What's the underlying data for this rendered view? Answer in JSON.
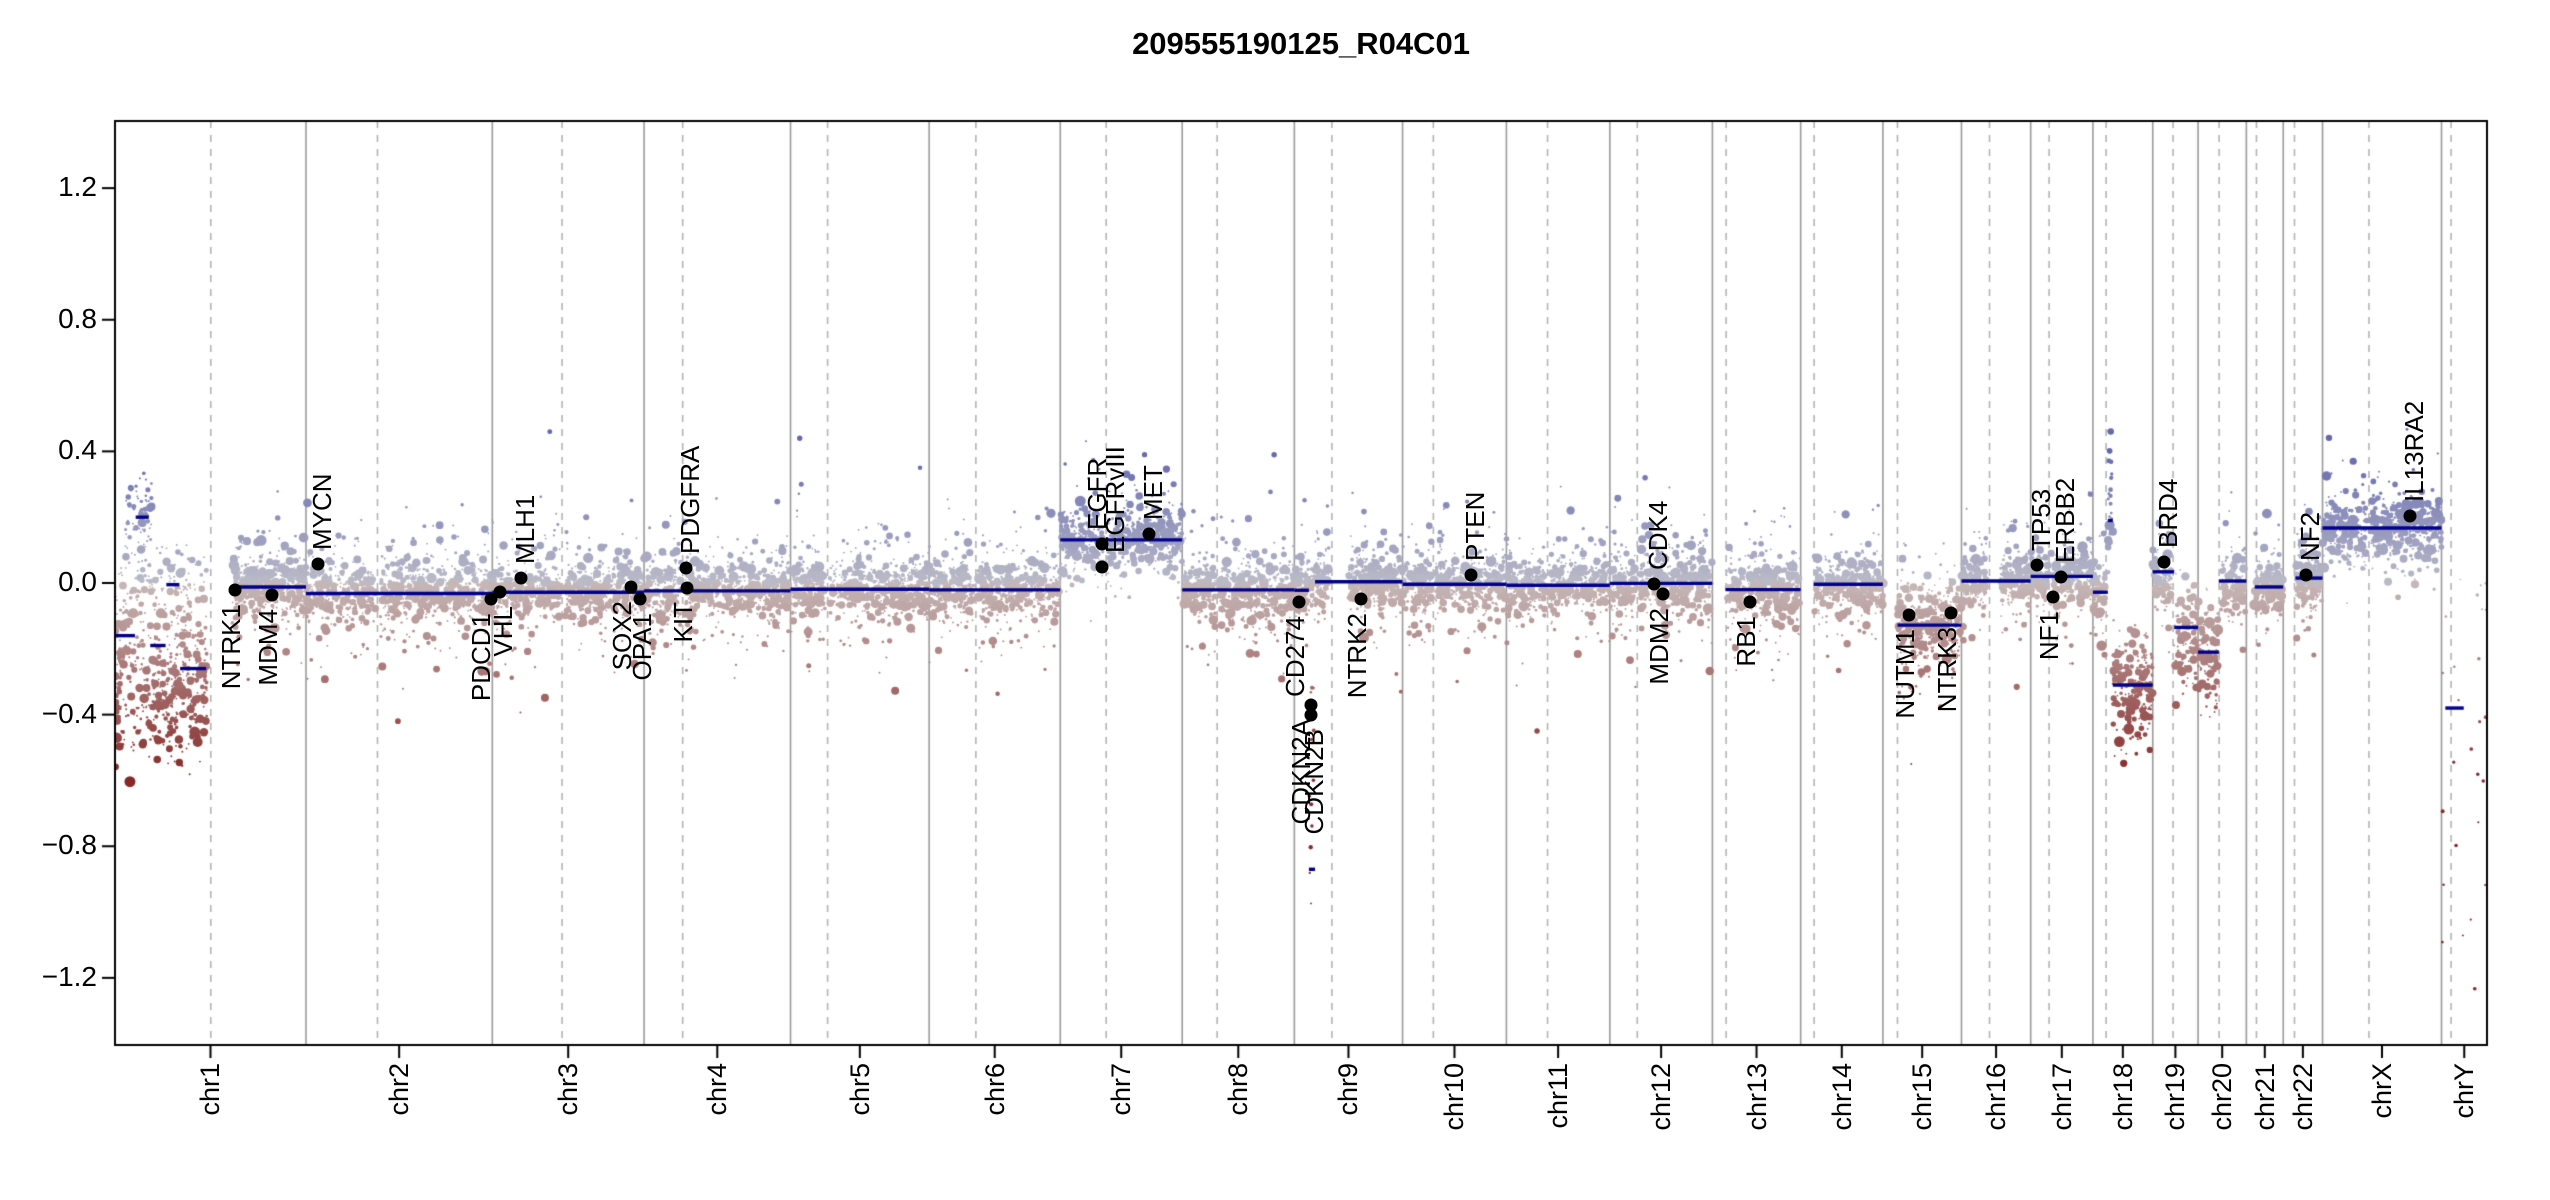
{
  "title": "209555190125_R04C01",
  "colors": {
    "background": "#ffffff",
    "segment_line": "#00008B",
    "gene_dot": "#000000",
    "boundary_line": "#9b9b9b",
    "centromere_line": "#b4b4b4",
    "axis": "#000000",
    "point_pos_low": "#bbbbc7",
    "point_pos_high": "#6368b0",
    "point_neg_low": "#c6b8b8",
    "point_neg_high": "#862a28"
  },
  "chart_data": {
    "type": "scatter",
    "title": "209555190125_R04C01",
    "xlabel": "",
    "ylabel": "",
    "ylim": [
      -1.404,
      1.404
    ],
    "grid": "chromosome boundaries solid, centromeres dashed",
    "y_ticks": [
      1.2,
      0.8,
      0.4,
      0.0,
      -0.4,
      -0.8,
      -1.2
    ],
    "chromosomes": [
      {
        "name": "chr1",
        "length_mb": 249.25,
        "centromere_mb": 125.0,
        "gaps": [
          [
            120,
            153
          ]
        ]
      },
      {
        "name": "chr2",
        "length_mb": 243.2,
        "centromere_mb": 93.3,
        "gaps": [
          [
            91,
            96
          ]
        ]
      },
      {
        "name": "chr3",
        "length_mb": 198.02,
        "centromere_mb": 91.0,
        "gaps": [
          [
            88,
            94
          ]
        ]
      },
      {
        "name": "chr4",
        "length_mb": 191.15,
        "centromere_mb": 50.4,
        "gaps": [
          [
            48,
            53
          ]
        ]
      },
      {
        "name": "chr5",
        "length_mb": 180.92,
        "centromere_mb": 48.4,
        "gaps": [
          [
            45,
            51
          ]
        ]
      },
      {
        "name": "chr6",
        "length_mb": 171.12,
        "centromere_mb": 61.0,
        "gaps": [
          [
            58,
            64
          ]
        ]
      },
      {
        "name": "chr7",
        "length_mb": 159.14,
        "centromere_mb": 59.9,
        "gaps": [
          [
            57,
            62
          ]
        ]
      },
      {
        "name": "chr8",
        "length_mb": 146.36,
        "centromere_mb": 45.6,
        "gaps": [
          [
            43,
            48
          ]
        ]
      },
      {
        "name": "chr9",
        "length_mb": 141.21,
        "centromere_mb": 49.0,
        "gaps": [
          [
            45,
            70
          ]
        ]
      },
      {
        "name": "chr10",
        "length_mb": 135.53,
        "centromere_mb": 40.2,
        "gaps": [
          [
            38,
            43
          ]
        ]
      },
      {
        "name": "chr11",
        "length_mb": 135.01,
        "centromere_mb": 53.7,
        "gaps": [
          [
            51,
            56
          ]
        ]
      },
      {
        "name": "chr12",
        "length_mb": 133.85,
        "centromere_mb": 35.8,
        "gaps": [
          [
            34,
            39
          ]
        ]
      },
      {
        "name": "chr13",
        "length_mb": 115.17,
        "centromere_mb": 17.9,
        "gaps": [
          [
            0,
            18
          ]
        ]
      },
      {
        "name": "chr14",
        "length_mb": 107.35,
        "centromere_mb": 17.6,
        "gaps": [
          [
            0,
            18
          ]
        ]
      },
      {
        "name": "chr15",
        "length_mb": 102.53,
        "centromere_mb": 19.0,
        "gaps": [
          [
            0,
            19.5
          ]
        ]
      },
      {
        "name": "chr16",
        "length_mb": 90.35,
        "centromere_mb": 36.6,
        "gaps": [
          [
            33,
            51
          ]
        ]
      },
      {
        "name": "chr17",
        "length_mb": 81.2,
        "centromere_mb": 24.0,
        "gaps": [
          [
            23,
            26
          ]
        ]
      },
      {
        "name": "chr18",
        "length_mb": 78.08,
        "centromere_mb": 17.2,
        "gaps": [
          [
            16.5,
            19
          ]
        ]
      },
      {
        "name": "chr19",
        "length_mb": 59.13,
        "centromere_mb": 26.5,
        "gaps": [
          [
            24.5,
            28
          ]
        ]
      },
      {
        "name": "chr20",
        "length_mb": 63.03,
        "centromere_mb": 27.5,
        "gaps": [
          [
            26,
            30
          ]
        ]
      },
      {
        "name": "chr21",
        "length_mb": 48.13,
        "centromere_mb": 13.2,
        "gaps": [
          [
            0,
            11
          ]
        ]
      },
      {
        "name": "chr22",
        "length_mb": 51.3,
        "centromere_mb": 14.7,
        "gaps": [
          [
            0,
            16
          ]
        ]
      },
      {
        "name": "chrX",
        "length_mb": 155.27,
        "centromere_mb": 60.6,
        "gaps": [
          [
            58,
            63
          ]
        ]
      },
      {
        "name": "chrY",
        "length_mb": 59.37,
        "centromere_mb": 12.5,
        "gaps": [
          [
            8,
            14
          ],
          [
            30,
            38
          ]
        ]
      }
    ],
    "segments": [
      {
        "chr": "chr1",
        "start_mb": 0,
        "end_mb": 26,
        "value": -0.16
      },
      {
        "chr": "chr1",
        "start_mb": 27,
        "end_mb": 44,
        "value": 0.2
      },
      {
        "chr": "chr1",
        "start_mb": 46,
        "end_mb": 66,
        "value": -0.19
      },
      {
        "chr": "chr1",
        "start_mb": 67,
        "end_mb": 84,
        "value": -0.005
      },
      {
        "chr": "chr1",
        "start_mb": 85,
        "end_mb": 119,
        "value": -0.26
      },
      {
        "chr": "chr1",
        "start_mb": 153,
        "end_mb": 249.25,
        "value": -0.012
      },
      {
        "chr": "chr2",
        "start_mb": 0,
        "end_mb": 243.2,
        "value": -0.032
      },
      {
        "chr": "chr3",
        "start_mb": 0,
        "end_mb": 198.02,
        "value": -0.028
      },
      {
        "chr": "chr4",
        "start_mb": 0,
        "end_mb": 191.15,
        "value": -0.024
      },
      {
        "chr": "chr5",
        "start_mb": 0,
        "end_mb": 180.92,
        "value": -0.019
      },
      {
        "chr": "chr6",
        "start_mb": 0,
        "end_mb": 171.12,
        "value": -0.021
      },
      {
        "chr": "chr7",
        "start_mb": 0,
        "end_mb": 159.14,
        "value": 0.131
      },
      {
        "chr": "chr8",
        "start_mb": 0,
        "end_mb": 146.36,
        "value": -0.021
      },
      {
        "chr": "chr9",
        "start_mb": 0,
        "end_mb": 19,
        "value": -0.022
      },
      {
        "chr": "chr9",
        "start_mb": 19,
        "end_mb": 27,
        "value": -0.87
      },
      {
        "chr": "chr9",
        "start_mb": 27,
        "end_mb": 141.21,
        "value": 0.004
      },
      {
        "chr": "chr10",
        "start_mb": 0,
        "end_mb": 135.53,
        "value": -0.004
      },
      {
        "chr": "chr11",
        "start_mb": 0,
        "end_mb": 135.01,
        "value": -0.007
      },
      {
        "chr": "chr12",
        "start_mb": 0,
        "end_mb": 133.85,
        "value": -0.001
      },
      {
        "chr": "chr13",
        "start_mb": 17,
        "end_mb": 115.17,
        "value": -0.02
      },
      {
        "chr": "chr14",
        "start_mb": 17,
        "end_mb": 107.35,
        "value": -0.004
      },
      {
        "chr": "chr15",
        "start_mb": 19,
        "end_mb": 102.53,
        "value": -0.128
      },
      {
        "chr": "chr16",
        "start_mb": 0,
        "end_mb": 90.35,
        "value": 0.006
      },
      {
        "chr": "chr17",
        "start_mb": 0,
        "end_mb": 81.2,
        "value": 0.02
      },
      {
        "chr": "chr18",
        "start_mb": 0,
        "end_mb": 19.5,
        "value": -0.028
      },
      {
        "chr": "chr18",
        "start_mb": 19.5,
        "end_mb": 26,
        "value": 0.19
      },
      {
        "chr": "chr18",
        "start_mb": 26,
        "end_mb": 78.08,
        "value": -0.31
      },
      {
        "chr": "chr19",
        "start_mb": 0,
        "end_mb": 28,
        "value": 0.034
      },
      {
        "chr": "chr19",
        "start_mb": 28,
        "end_mb": 59.13,
        "value": -0.135
      },
      {
        "chr": "chr20",
        "start_mb": 0,
        "end_mb": 27,
        "value": -0.21
      },
      {
        "chr": "chr20",
        "start_mb": 27,
        "end_mb": 63.03,
        "value": 0.006
      },
      {
        "chr": "chr21",
        "start_mb": 11,
        "end_mb": 48.13,
        "value": -0.012
      },
      {
        "chr": "chr22",
        "start_mb": 16,
        "end_mb": 51.3,
        "value": 0.015
      },
      {
        "chr": "chrX",
        "start_mb": 0,
        "end_mb": 155.27,
        "value": 0.167
      },
      {
        "chr": "chrY",
        "start_mb": 5,
        "end_mb": 29,
        "value": -0.38
      }
    ],
    "genes": [
      {
        "label": "NTRK1",
        "chr": "chr1",
        "mb": 156.8,
        "value": -0.02,
        "side": "below",
        "ldx": 0
      },
      {
        "label": "MDM4",
        "chr": "chr1",
        "mb": 204.5,
        "value": -0.035,
        "side": "below",
        "ldx": 0
      },
      {
        "label": "MYCN",
        "chr": "chr2",
        "mb": 16.1,
        "value": 0.058,
        "side": "above",
        "ldx": 0
      },
      {
        "label": "PDCD1",
        "chr": "chr2",
        "mb": 242.0,
        "value": -0.05,
        "side": "below",
        "ldx": -6
      },
      {
        "label": "VHL",
        "chr": "chr3",
        "mb": 10.2,
        "value": -0.028,
        "side": "below",
        "ldx": 7
      },
      {
        "label": "MLH1",
        "chr": "chr3",
        "mb": 37.0,
        "value": 0.015,
        "side": "above",
        "ldx": 0
      },
      {
        "label": "SOX2",
        "chr": "chr3",
        "mb": 181.4,
        "value": -0.012,
        "side": "below",
        "ldx": -5
      },
      {
        "label": "OPA1",
        "chr": "chr3",
        "mb": 193.3,
        "value": -0.048,
        "side": "below",
        "ldx": 6
      },
      {
        "label": "PDGFRA",
        "chr": "chr4",
        "mb": 55.1,
        "value": 0.045,
        "side": "above",
        "ldx": 0
      },
      {
        "label": "KIT",
        "chr": "chr4",
        "mb": 55.6,
        "value": -0.015,
        "side": "below",
        "ldx": 0
      },
      {
        "label": "EGFR",
        "chr": "chr7",
        "mb": 55.1,
        "value": 0.12,
        "side": "above",
        "ldx": -9
      },
      {
        "label": "EGFRvIII",
        "chr": "chr7",
        "mb": 55.1,
        "value": 0.05,
        "side": "above",
        "ldx": 9
      },
      {
        "label": "MET",
        "chr": "chr7",
        "mb": 116.3,
        "value": 0.15,
        "side": "above",
        "ldx": 0
      },
      {
        "label": "CD274",
        "chr": "chr9",
        "mb": 5.5,
        "value": -0.058,
        "side": "below",
        "ldx": 0
      },
      {
        "label": "CDKN2A",
        "chr": "chr9",
        "mb": 21.97,
        "value": -0.37,
        "side": "below",
        "ldx": -6
      },
      {
        "label": "CDKN2B",
        "chr": "chr9",
        "mb": 22.0,
        "value": -0.4,
        "side": "below",
        "ldx": 7
      },
      {
        "label": "NTRK2",
        "chr": "chr9",
        "mb": 87.3,
        "value": -0.05,
        "side": "below",
        "ldx": 0
      },
      {
        "label": "PTEN",
        "chr": "chr10",
        "mb": 89.7,
        "value": 0.025,
        "side": "above",
        "ldx": 0
      },
      {
        "label": "CDK4",
        "chr": "chr12",
        "mb": 58.1,
        "value": -0.002,
        "side": "above",
        "ldx": 0
      },
      {
        "label": "MDM2",
        "chr": "chr12",
        "mb": 69.2,
        "value": -0.033,
        "side": "below",
        "ldx": 0
      },
      {
        "label": "RB1",
        "chr": "chr13",
        "mb": 48.9,
        "value": -0.057,
        "side": "below",
        "ldx": 0
      },
      {
        "label": "NUTM1",
        "chr": "chr15",
        "mb": 34.6,
        "value": -0.097,
        "side": "below",
        "ldx": 0
      },
      {
        "label": "NTRK3",
        "chr": "chr15",
        "mb": 88.4,
        "value": -0.091,
        "side": "below",
        "ldx": 0
      },
      {
        "label": "TP53",
        "chr": "chr17",
        "mb": 7.6,
        "value": 0.055,
        "side": "above",
        "ldx": 0
      },
      {
        "label": "NF1",
        "chr": "chr17",
        "mb": 29.5,
        "value": -0.042,
        "side": "below",
        "ldx": 0
      },
      {
        "label": "ERBB2",
        "chr": "chr17",
        "mb": 39.7,
        "value": 0.018,
        "side": "above",
        "ldx": 0
      },
      {
        "label": "BRD4",
        "chr": "chr19",
        "mb": 15.3,
        "value": 0.065,
        "side": "above",
        "ldx": 0
      },
      {
        "label": "NF2",
        "chr": "chr22",
        "mb": 30.0,
        "value": 0.024,
        "side": "above",
        "ldx": 0
      },
      {
        "label": "IL13RA2",
        "chr": "chrX",
        "mb": 114.2,
        "value": 0.203,
        "side": "above",
        "ldx": 0
      }
    ],
    "outlier_points": [
      {
        "chr": "chr3",
        "mb": 75,
        "value": 0.46
      },
      {
        "chr": "chr5",
        "mb": 12,
        "value": 0.44
      },
      {
        "chr": "chr5",
        "mb": 14,
        "value": 0.3
      },
      {
        "chr": "chr5",
        "mb": 169,
        "value": 0.35
      },
      {
        "chr": "chr7",
        "mb": 110,
        "value": 0.39
      },
      {
        "chr": "chr7",
        "mb": 148,
        "value": 0.3
      },
      {
        "chr": "chr8",
        "mb": 120,
        "value": 0.39
      },
      {
        "chr": "chr12",
        "mb": 46,
        "value": 0.32
      },
      {
        "chr": "chr2",
        "mb": 120,
        "value": -0.42
      },
      {
        "chr": "chr11",
        "mb": 40,
        "value": -0.45
      },
      {
        "chr": "chr17",
        "mb": 78,
        "value": 0.27
      },
      {
        "chr": "chrX",
        "mb": 40,
        "value": 0.37
      }
    ],
    "special_clusters": {
      "chr1p_noisy_region": {
        "chr": "chr1",
        "range_mb": [
          0,
          120
        ],
        "blue_cluster_mb": [
          12,
          48
        ],
        "blue_level": 0.2,
        "red_level": -0.3
      },
      "chr9_deletion_streak": {
        "chr": "chr9",
        "range_mb": [
          19,
          26
        ],
        "values_down_to": -1.0
      },
      "chr18_blue_streak": {
        "chr": "chr18",
        "range_mb": [
          19.5,
          25
        ],
        "values": [
          0.22,
          0.47
        ]
      },
      "chrY_sparse_drop": {
        "chr": "chrY",
        "values_down_to": -1.28
      }
    },
    "scatter_profile": {
      "points_per_mb": 4.1,
      "core_sd": 0.045,
      "mid_sd": 0.09,
      "tail_sd": 0.16,
      "seed": 42
    }
  }
}
